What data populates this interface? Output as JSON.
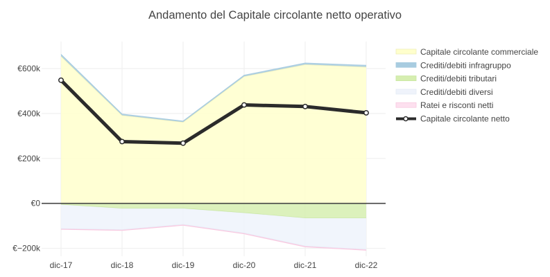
{
  "chart_data": {
    "type": "area",
    "title": "Andamento del Capitale circolante netto operativo",
    "categories": [
      "dic-17",
      "dic-18",
      "dic-19",
      "dic-20",
      "dic-21",
      "dic-22"
    ],
    "yticks": [
      {
        "value": -200000,
        "label": "€−200k"
      },
      {
        "value": 0,
        "label": "€0"
      },
      {
        "value": 200000,
        "label": "€200k"
      },
      {
        "value": 400000,
        "label": "€400k"
      },
      {
        "value": 600000,
        "label": "€600k"
      }
    ],
    "ylim": [
      -235000,
      720000
    ],
    "grid": true,
    "legend_position": "right",
    "series": [
      {
        "name": "Capitale circolante commerciale",
        "kind": "area",
        "group": "pos",
        "color": "#ffffcc",
        "edge": "#eeeebb",
        "values": [
          655000,
          392000,
          362000,
          565000,
          618000,
          607000
        ]
      },
      {
        "name": "Crediti/debiti infragruppo",
        "kind": "area",
        "group": "pos",
        "color": "#a8cce0",
        "edge": "#a8cce0",
        "values": [
          8000,
          5000,
          4000,
          5000,
          6000,
          7000
        ]
      },
      {
        "name": "Crediti/debiti tributari",
        "kind": "area",
        "group": "neg",
        "color": "#d6eeb0",
        "edge": "#c8e6a0",
        "values": [
          -5000,
          -22000,
          -22000,
          -42000,
          -65000,
          -65000
        ]
      },
      {
        "name": "Crediti/debiti diversi",
        "kind": "area",
        "group": "neg",
        "color": "#eff3fb",
        "edge": "#e4ebf6",
        "values": [
          -108000,
          -95000,
          -72000,
          -90000,
          -125000,
          -140000
        ]
      },
      {
        "name": "Ratei e risconti netti",
        "kind": "area",
        "group": "neg",
        "color": "#fde0ef",
        "edge": "#f8c8e0",
        "values": [
          -2000,
          -3000,
          -3000,
          -3000,
          -3000,
          -3000
        ]
      },
      {
        "name": "Capitale circolante netto",
        "kind": "line",
        "color": "#2b2b2b",
        "values": [
          548000,
          275000,
          268000,
          438000,
          431000,
          403000
        ]
      }
    ]
  }
}
